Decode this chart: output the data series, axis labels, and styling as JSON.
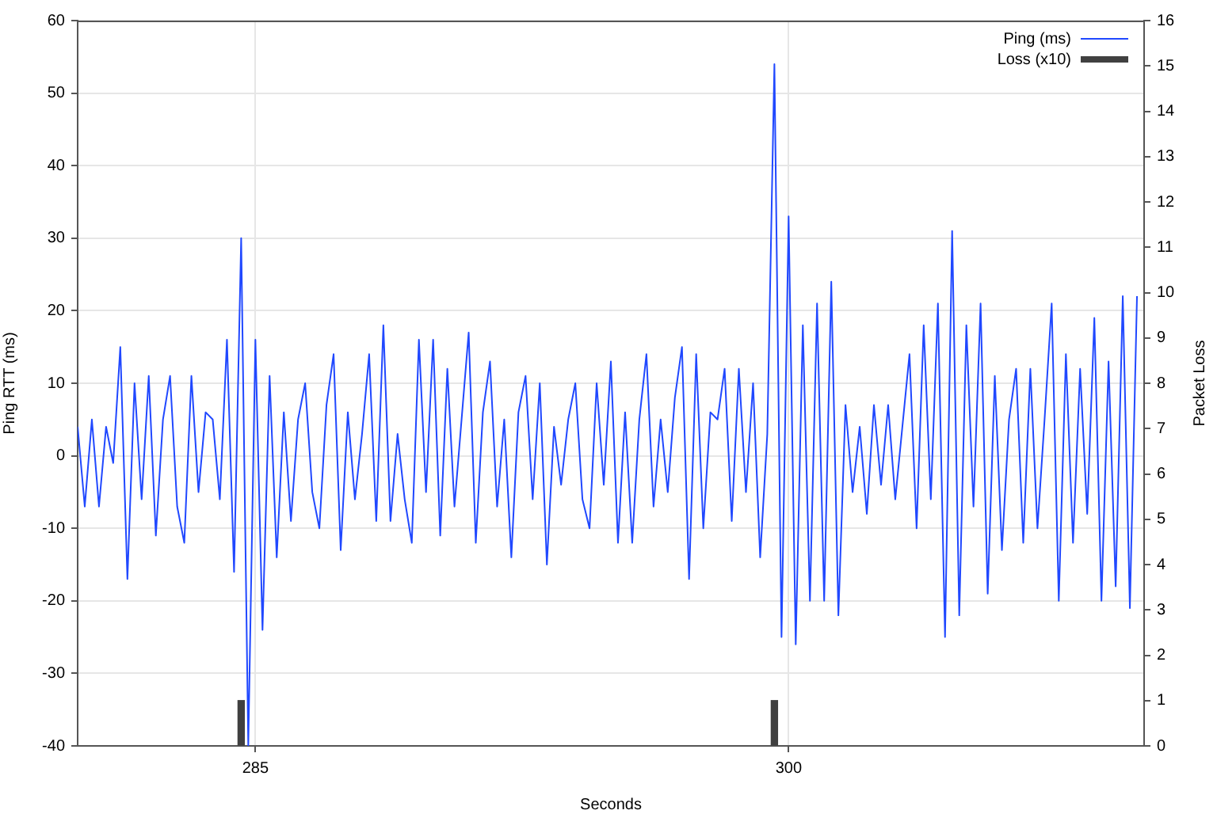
{
  "chart_data": {
    "type": "line",
    "xlabel": "Seconds",
    "ylabel": "Ping RTT (ms)",
    "y2label": "Packet Loss",
    "xlim": [
      280,
      310
    ],
    "xticks": [
      285,
      300
    ],
    "ylim": [
      -40,
      60
    ],
    "yticks": [
      -40,
      -30,
      -20,
      -10,
      0,
      10,
      20,
      30,
      40,
      50,
      60
    ],
    "y2lim": [
      0,
      16
    ],
    "y2ticks": [
      0,
      1,
      2,
      3,
      4,
      5,
      6,
      7,
      8,
      9,
      10,
      11,
      12,
      13,
      14,
      15,
      16
    ],
    "grid": true,
    "legend": "top right",
    "series": [
      {
        "name": "Ping (ms)",
        "color": "#2048ff",
        "x": [
          280,
          280.2,
          280.4,
          280.6,
          280.8,
          281,
          281.2,
          281.4,
          281.6,
          281.8,
          282,
          282.2,
          282.4,
          282.6,
          282.8,
          283,
          283.2,
          283.4,
          283.6,
          283.8,
          284,
          284.2,
          284.4,
          284.6,
          284.8,
          285,
          285.2,
          285.4,
          285.6,
          285.8,
          286,
          286.2,
          286.4,
          286.6,
          286.8,
          287,
          287.2,
          287.4,
          287.6,
          287.8,
          288,
          288.2,
          288.4,
          288.6,
          288.8,
          289,
          289.2,
          289.4,
          289.6,
          289.8,
          290,
          290.2,
          290.4,
          290.6,
          290.8,
          291,
          291.2,
          291.4,
          291.6,
          291.8,
          292,
          292.2,
          292.4,
          292.6,
          292.8,
          293,
          293.2,
          293.4,
          293.6,
          293.8,
          294,
          294.2,
          294.4,
          294.6,
          294.8,
          295,
          295.2,
          295.4,
          295.6,
          295.8,
          296,
          296.2,
          296.4,
          296.6,
          296.8,
          297,
          297.2,
          297.4,
          297.6,
          297.8,
          298,
          298.2,
          298.4,
          298.6,
          298.8,
          299,
          299.2,
          299.4,
          299.6,
          299.8,
          300,
          300.2,
          300.4,
          300.6,
          300.8,
          301,
          301.2,
          301.4,
          301.6,
          301.8,
          302,
          302.2,
          302.4,
          302.6,
          302.8,
          303,
          303.2,
          303.4,
          303.6,
          303.8,
          304,
          304.2,
          304.4,
          304.6,
          304.8,
          305,
          305.2,
          305.4,
          305.6,
          305.8,
          306,
          306.2,
          306.4,
          306.6,
          306.8,
          307,
          307.2,
          307.4,
          307.6,
          307.8,
          308,
          308.2,
          308.4,
          308.6,
          308.8,
          309,
          309.2,
          309.4,
          309.6,
          309.8
        ],
        "values": [
          4,
          -7,
          5,
          -7,
          4,
          -1,
          15,
          -17,
          10,
          -6,
          11,
          -11,
          5,
          11,
          -7,
          -12,
          11,
          -5,
          6,
          5,
          -6,
          16,
          -16,
          30,
          -40,
          16,
          -24,
          11,
          -14,
          6,
          -9,
          5,
          10,
          -5,
          -10,
          7,
          14,
          -13,
          6,
          -6,
          3,
          14,
          -9,
          18,
          -9,
          3,
          -6,
          -12,
          16,
          -5,
          16,
          -11,
          12,
          -7,
          5,
          17,
          -12,
          6,
          13,
          -7,
          5,
          -14,
          6,
          11,
          -6,
          10,
          -15,
          4,
          -4,
          5,
          10,
          -6,
          -10,
          10,
          -4,
          13,
          -12,
          6,
          -12,
          5,
          14,
          -7,
          5,
          -5,
          8,
          15,
          -17,
          14,
          -10,
          6,
          5,
          12,
          -9,
          12,
          -5,
          10,
          -14,
          3,
          54,
          -25,
          33,
          -26,
          18,
          -20,
          21,
          -20,
          24,
          -22,
          7,
          -5,
          4,
          -8,
          7,
          -4,
          7,
          -6,
          4,
          14,
          -10,
          18,
          -6,
          21,
          -25,
          31,
          -22,
          18,
          -7,
          21,
          -19,
          11,
          -13,
          5,
          12,
          -12,
          12,
          -10,
          5,
          21,
          -20,
          14,
          -12,
          12,
          -8,
          19,
          -20,
          13,
          -18,
          22,
          -21,
          22
        ]
      },
      {
        "name": "Loss (x10)",
        "type": "bar",
        "color": "#404040",
        "axis": "y2",
        "x": [
          284.6,
          299.6
        ],
        "values": [
          1,
          1
        ]
      }
    ]
  }
}
